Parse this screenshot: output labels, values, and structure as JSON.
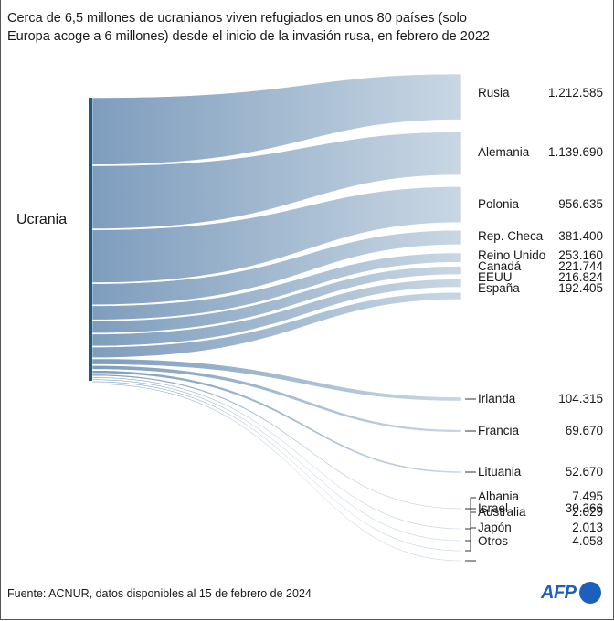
{
  "header": {
    "title": "",
    "subtitle_line1": "Cerca de 6,5 millones de ucranianos viven refugiados en unos 80 países (solo",
    "subtitle_line2": "Europa acoge a 6 millones) desde el inicio de la invasión rusa, en febrero de 2022"
  },
  "chart_data": {
    "type": "sankey",
    "source": "Ucrania",
    "flows": [
      {
        "name": "Rusia",
        "value": 1212585,
        "label": "1.212.585"
      },
      {
        "name": "Alemania",
        "value": 1139690,
        "label": "1.139.690"
      },
      {
        "name": "Polonia",
        "value": 956635,
        "label": "956.635"
      },
      {
        "name": "Rep. Checa",
        "value": 381400,
        "label": "381.400"
      },
      {
        "name": "Reino Unido",
        "value": 253160,
        "label": "253.160"
      },
      {
        "name": "Canadá",
        "value": 221744,
        "label": "221.744"
      },
      {
        "name": "EEUU",
        "value": 216824,
        "label": "216.824"
      },
      {
        "name": "España",
        "value": 192405,
        "label": "192.405"
      },
      {
        "name": "Irlanda",
        "value": 104315,
        "label": "104.315"
      },
      {
        "name": "Francia",
        "value": 69670,
        "label": "69.670"
      },
      {
        "name": "Lituania",
        "value": 52670,
        "label": "52.670"
      },
      {
        "name": "Israel",
        "value": 30366,
        "label": "30.366"
      },
      {
        "name": "Albania",
        "value": 7495,
        "label": "7.495"
      },
      {
        "name": "Australia",
        "value": 2029,
        "label": "2.029"
      },
      {
        "name": "Japón",
        "value": 2013,
        "label": "2.013"
      },
      {
        "name": "Otros",
        "value": 4058,
        "label": "4.058"
      }
    ],
    "colors": {
      "source_bar": "#1f5b80",
      "flow_left": "#7e9dbd",
      "flow_right": "#c9d7e4"
    }
  },
  "footer": {
    "source": "Fuente: ACNUR, datos disponibles al 15 de febrero de 2024",
    "logo": "AFP"
  }
}
